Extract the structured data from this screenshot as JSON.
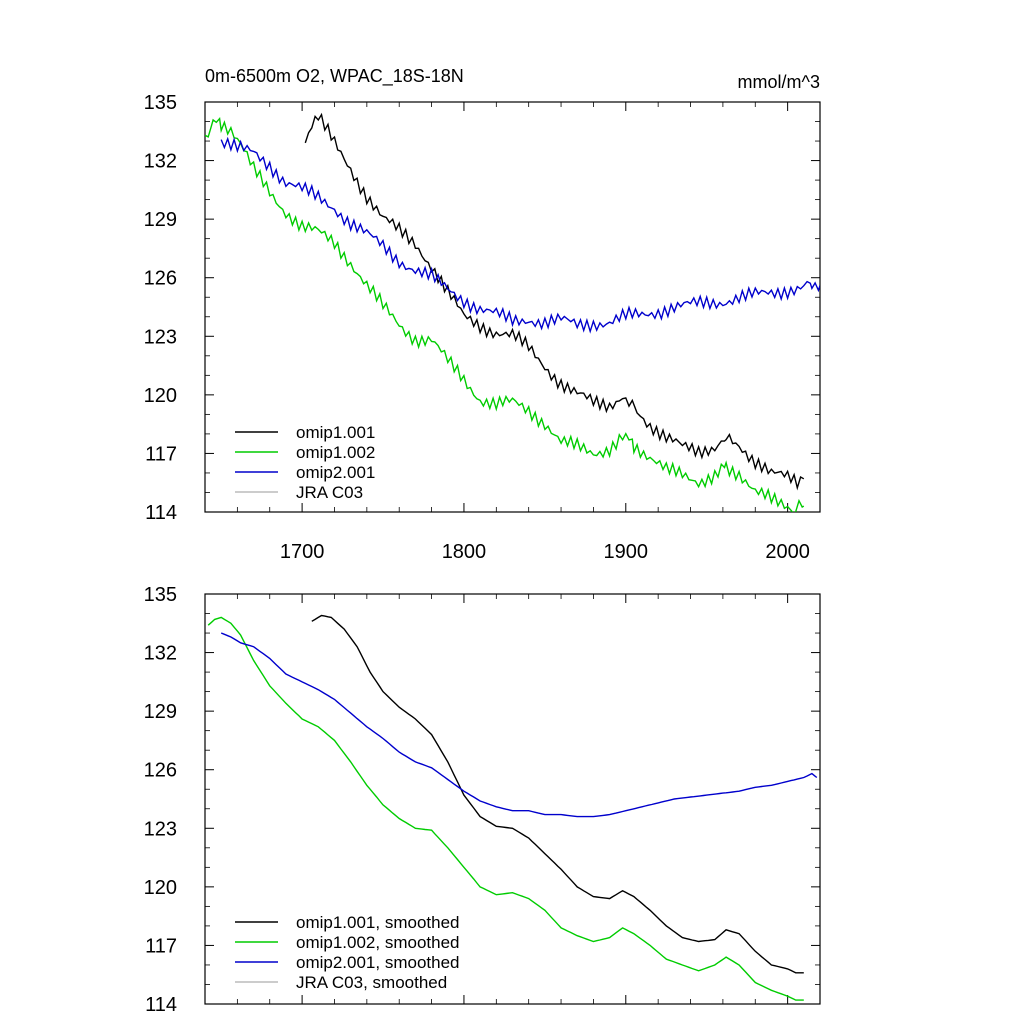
{
  "chart_data": [
    {
      "type": "line",
      "title": "0m-6500m O2, WPAC_18S-18N",
      "units": "mmol/m^3",
      "xlim": [
        1640,
        2020
      ],
      "ylim": [
        114,
        135
      ],
      "xticks": [
        1700,
        1800,
        1900,
        2000
      ],
      "yticks": [
        114,
        117,
        120,
        123,
        126,
        129,
        132,
        135
      ],
      "legend_position": "bottom-left",
      "series": [
        {
          "name": "omip1.001",
          "color": "#000000",
          "x": [
            1702,
            1706,
            1710,
            1716,
            1722,
            1730,
            1740,
            1750,
            1760,
            1770,
            1780,
            1790,
            1800,
            1810,
            1820,
            1830,
            1840,
            1850,
            1860,
            1870,
            1880,
            1890,
            1898,
            1905,
            1915,
            1925,
            1935,
            1945,
            1955,
            1962,
            1970,
            1980,
            1990,
            2000,
            2006,
            2010
          ],
          "y": [
            133.0,
            133.8,
            134.2,
            133.4,
            132.6,
            131.6,
            130.2,
            129.0,
            128.4,
            127.8,
            126.6,
            125.2,
            124.0,
            123.6,
            123.2,
            123.0,
            122.4,
            121.5,
            120.6,
            120.0,
            119.6,
            119.5,
            120.0,
            119.4,
            118.5,
            117.8,
            117.3,
            117.1,
            117.4,
            117.9,
            117.5,
            116.6,
            115.9,
            115.8,
            115.6,
            115.7
          ]
        },
        {
          "name": "omip1.002",
          "color": "#00cc00",
          "x": [
            1640,
            1645,
            1650,
            1656,
            1662,
            1670,
            1680,
            1690,
            1700,
            1710,
            1720,
            1730,
            1740,
            1750,
            1760,
            1770,
            1780,
            1790,
            1800,
            1810,
            1820,
            1830,
            1840,
            1850,
            1860,
            1870,
            1880,
            1890,
            1898,
            1905,
            1915,
            1925,
            1935,
            1945,
            1955,
            1962,
            1970,
            1980,
            1990,
            2000,
            2005,
            2010
          ],
          "y": [
            133.2,
            133.8,
            134.0,
            133.6,
            132.8,
            131.5,
            130.4,
            129.4,
            128.6,
            128.3,
            127.8,
            126.8,
            125.6,
            124.5,
            123.6,
            122.9,
            122.8,
            121.7,
            120.8,
            119.8,
            119.5,
            119.6,
            119.2,
            118.6,
            117.6,
            117.3,
            117.0,
            117.3,
            117.9,
            117.5,
            116.8,
            116.1,
            115.9,
            115.6,
            115.9,
            116.4,
            116.0,
            115.0,
            114.6,
            114.3,
            114.1,
            114.3
          ]
        },
        {
          "name": "omip2.001",
          "color": "#0000cc",
          "x": [
            1650,
            1660,
            1670,
            1680,
            1690,
            1700,
            1710,
            1720,
            1730,
            1740,
            1750,
            1760,
            1770,
            1780,
            1790,
            1800,
            1810,
            1820,
            1830,
            1840,
            1850,
            1860,
            1870,
            1880,
            1890,
            1900,
            1910,
            1920,
            1930,
            1940,
            1950,
            1960,
            1970,
            1980,
            1990,
            2000,
            2010,
            2015,
            2020
          ],
          "y": [
            133.0,
            132.6,
            132.4,
            131.8,
            130.9,
            130.5,
            130.1,
            129.6,
            128.8,
            128.2,
            127.6,
            126.9,
            126.4,
            126.0,
            125.4,
            124.9,
            124.4,
            124.1,
            123.8,
            123.9,
            123.7,
            123.8,
            123.6,
            123.7,
            123.7,
            124.0,
            124.1,
            124.3,
            124.5,
            124.6,
            124.7,
            124.8,
            125.0,
            125.1,
            125.2,
            125.4,
            125.6,
            125.8,
            125.6
          ]
        },
        {
          "name": "JRA C03",
          "color": "#bbbbbb",
          "x": [],
          "y": []
        }
      ]
    },
    {
      "type": "line",
      "title": "",
      "units": "",
      "xlim": [
        1640,
        2020
      ],
      "ylim": [
        114,
        135
      ],
      "yticks": [
        114,
        117,
        120,
        123,
        126,
        129,
        132,
        135
      ],
      "legend_position": "bottom-left",
      "series": [
        {
          "name": "omip1.001, smoothed",
          "color": "#000000",
          "x": [
            1706,
            1712,
            1718,
            1726,
            1734,
            1742,
            1750,
            1760,
            1770,
            1780,
            1790,
            1800,
            1810,
            1820,
            1830,
            1840,
            1850,
            1860,
            1870,
            1880,
            1890,
            1898,
            1905,
            1915,
            1925,
            1935,
            1945,
            1955,
            1962,
            1970,
            1980,
            1990,
            2000,
            2005,
            2010
          ],
          "y": [
            133.6,
            133.9,
            133.8,
            133.2,
            132.3,
            131.0,
            130.0,
            129.2,
            128.6,
            127.8,
            126.4,
            124.7,
            123.6,
            123.1,
            123.0,
            122.5,
            121.7,
            120.9,
            120.0,
            119.5,
            119.4,
            119.8,
            119.5,
            118.8,
            118.0,
            117.4,
            117.2,
            117.3,
            117.8,
            117.6,
            116.7,
            116.0,
            115.8,
            115.6,
            115.6
          ]
        },
        {
          "name": "omip1.002, smoothed",
          "color": "#00cc00",
          "x": [
            1642,
            1646,
            1650,
            1656,
            1662,
            1670,
            1680,
            1690,
            1700,
            1710,
            1720,
            1730,
            1740,
            1750,
            1760,
            1770,
            1780,
            1790,
            1800,
            1810,
            1820,
            1830,
            1840,
            1850,
            1860,
            1870,
            1880,
            1890,
            1898,
            1905,
            1915,
            1925,
            1935,
            1945,
            1955,
            1962,
            1970,
            1980,
            1990,
            2000,
            2005,
            2010
          ],
          "y": [
            133.4,
            133.7,
            133.8,
            133.5,
            132.9,
            131.6,
            130.3,
            129.4,
            128.6,
            128.2,
            127.5,
            126.4,
            125.2,
            124.2,
            123.5,
            123.0,
            122.9,
            122.0,
            121.0,
            120.0,
            119.6,
            119.7,
            119.4,
            118.8,
            117.9,
            117.5,
            117.2,
            117.4,
            117.9,
            117.6,
            117.0,
            116.3,
            116.0,
            115.7,
            116.0,
            116.4,
            116.0,
            115.1,
            114.7,
            114.4,
            114.2,
            114.2
          ]
        },
        {
          "name": "omip2.001, smoothed",
          "color": "#0000cc",
          "x": [
            1650,
            1656,
            1662,
            1670,
            1680,
            1690,
            1700,
            1710,
            1720,
            1730,
            1740,
            1750,
            1760,
            1770,
            1780,
            1790,
            1800,
            1810,
            1820,
            1830,
            1840,
            1850,
            1860,
            1870,
            1880,
            1890,
            1900,
            1910,
            1920,
            1930,
            1940,
            1950,
            1960,
            1970,
            1980,
            1990,
            2000,
            2010,
            2015,
            2018
          ],
          "y": [
            133.0,
            132.8,
            132.5,
            132.3,
            131.7,
            130.9,
            130.5,
            130.1,
            129.6,
            128.9,
            128.2,
            127.6,
            126.9,
            126.4,
            126.1,
            125.5,
            124.9,
            124.4,
            124.1,
            123.9,
            123.9,
            123.7,
            123.7,
            123.6,
            123.6,
            123.7,
            123.9,
            124.1,
            124.3,
            124.5,
            124.6,
            124.7,
            124.8,
            124.9,
            125.1,
            125.2,
            125.4,
            125.6,
            125.8,
            125.6
          ]
        },
        {
          "name": "JRA C03, smoothed",
          "color": "#bbbbbb",
          "x": [],
          "y": []
        }
      ]
    }
  ]
}
